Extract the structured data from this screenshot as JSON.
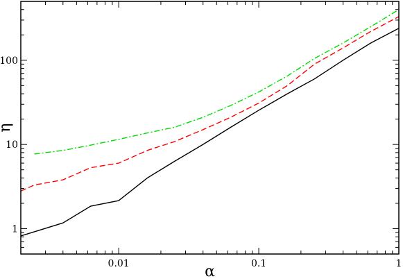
{
  "chart_data": {
    "type": "line",
    "xlabel": "α",
    "ylabel": "η",
    "x_scale": "log",
    "y_scale": "log",
    "xlim": [
      0.002,
      1
    ],
    "ylim": [
      0.5,
      500
    ],
    "grid": false,
    "legend": "none",
    "x_ticks": [
      {
        "value": 0.01,
        "label": "0.01"
      },
      {
        "value": 0.1,
        "label": "0.1"
      },
      {
        "value": 1,
        "label": "1"
      }
    ],
    "y_ticks": [
      {
        "value": 1,
        "label": "1"
      },
      {
        "value": 10,
        "label": "10"
      },
      {
        "value": 100,
        "label": "100"
      }
    ],
    "series": [
      {
        "color": "#000000",
        "dash": "solid",
        "x": [
          0.002,
          0.0025,
          0.004,
          0.0063,
          0.01,
          0.016,
          0.025,
          0.04,
          0.063,
          0.1,
          0.16,
          0.25,
          0.4,
          0.63,
          1.0
        ],
        "y": [
          0.82,
          0.92,
          1.17,
          1.85,
          2.15,
          4.0,
          6.3,
          10.0,
          16.0,
          25.5,
          40.0,
          60.0,
          100.0,
          160.0,
          240.0
        ]
      },
      {
        "color": "#ff0000",
        "dash": "dashed",
        "x": [
          0.002,
          0.0025,
          0.004,
          0.0063,
          0.01,
          0.016,
          0.025,
          0.04,
          0.063,
          0.1,
          0.16,
          0.25,
          0.4,
          0.63,
          1.0
        ],
        "y": [
          2.8,
          3.3,
          3.8,
          5.3,
          6.0,
          8.5,
          10.8,
          15.0,
          21.0,
          31.0,
          50.0,
          90.0,
          140.0,
          220.0,
          330.0
        ]
      },
      {
        "color": "#00dd00",
        "dash": "dashdot",
        "x": [
          0.0025,
          0.004,
          0.0063,
          0.01,
          0.016,
          0.025,
          0.04,
          0.063,
          0.1,
          0.16,
          0.25,
          0.4,
          0.63,
          1.0
        ],
        "y": [
          7.7,
          8.5,
          9.8,
          11.5,
          13.7,
          16.0,
          21.0,
          29.0,
          42.0,
          65.0,
          105.0,
          160.0,
          250.0,
          400.0
        ]
      }
    ]
  }
}
